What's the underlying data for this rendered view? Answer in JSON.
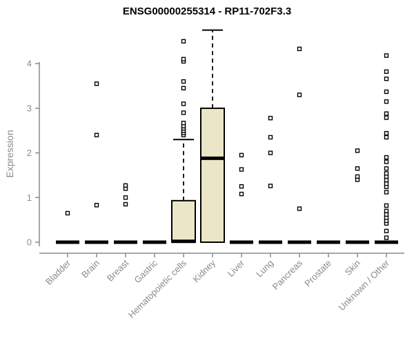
{
  "chart_data": {
    "type": "boxplot",
    "title": "ENSG00000255314 - RP11-702F3.3",
    "xlabel": "",
    "ylabel": "Expression",
    "ylim": [
      0,
      4.8
    ],
    "yticks": [
      0,
      1,
      2,
      3,
      4
    ],
    "grid": false,
    "legend": "none",
    "box_fill_color": "#ece6c9",
    "axis_color": "#8a8a8a",
    "categories": [
      "Bladder",
      "Brain",
      "Breast",
      "Gastric",
      "Hematopoietic cells",
      "Kidney",
      "Liver",
      "Lung",
      "Pancreas",
      "Prostate",
      "Skin",
      "Unknown / Other"
    ],
    "series": [
      {
        "category": "Bladder",
        "q1": 0,
        "median": 0,
        "q3": 0,
        "whisker_low": 0,
        "whisker_high": 0,
        "outliers": [
          0.65
        ]
      },
      {
        "category": "Brain",
        "q1": 0,
        "median": 0,
        "q3": 0,
        "whisker_low": 0,
        "whisker_high": 0,
        "outliers": [
          0.83,
          2.4,
          3.55
        ]
      },
      {
        "category": "Breast",
        "q1": 0,
        "median": 0,
        "q3": 0,
        "whisker_low": 0,
        "whisker_high": 0,
        "outliers": [
          0.85,
          1.0,
          1.2,
          1.27
        ]
      },
      {
        "category": "Gastric",
        "q1": 0,
        "median": 0,
        "q3": 0,
        "whisker_low": 0,
        "whisker_high": 0,
        "outliers": []
      },
      {
        "category": "Hematopoietic cells",
        "q1": 0,
        "median": 0.02,
        "q3": 0.93,
        "whisker_low": 0,
        "whisker_high": 2.3,
        "outliers": [
          2.4,
          2.45,
          2.5,
          2.55,
          2.6,
          2.67,
          2.9,
          3.1,
          3.45,
          3.6,
          4.05,
          4.1,
          4.5
        ]
      },
      {
        "category": "Kidney",
        "q1": 0,
        "median": 1.88,
        "q3": 3.0,
        "whisker_low": 0,
        "whisker_high": 4.75,
        "outliers": []
      },
      {
        "category": "Liver",
        "q1": 0,
        "median": 0,
        "q3": 0,
        "whisker_low": 0,
        "whisker_high": 0,
        "outliers": [
          1.08,
          1.25,
          1.63,
          1.95
        ]
      },
      {
        "category": "Lung",
        "q1": 0,
        "median": 0,
        "q3": 0,
        "whisker_low": 0,
        "whisker_high": 0,
        "outliers": [
          1.26,
          2.0,
          2.35,
          2.78
        ]
      },
      {
        "category": "Pancreas",
        "q1": 0,
        "median": 0,
        "q3": 0,
        "whisker_low": 0,
        "whisker_high": 0,
        "outliers": [
          0.75,
          3.3,
          4.33
        ]
      },
      {
        "category": "Prostate",
        "q1": 0,
        "median": 0,
        "q3": 0,
        "whisker_low": 0,
        "whisker_high": 0,
        "outliers": []
      },
      {
        "category": "Skin",
        "q1": 0,
        "median": 0,
        "q3": 0,
        "whisker_low": 0,
        "whisker_high": 0,
        "outliers": [
          1.4,
          1.47,
          1.65,
          2.05
        ]
      },
      {
        "category": "Unknown / Other",
        "q1": 0,
        "median": 0,
        "q3": 0,
        "whisker_low": 0,
        "whisker_high": 0,
        "outliers": [
          0.1,
          0.25,
          0.42,
          0.48,
          0.55,
          0.62,
          0.7,
          0.82,
          1.12,
          1.24,
          1.31,
          1.39,
          1.47,
          1.54,
          1.65,
          1.8,
          1.9,
          2.35,
          2.44,
          2.79,
          2.88,
          3.15,
          3.37,
          3.66,
          3.82,
          4.18
        ]
      }
    ]
  }
}
